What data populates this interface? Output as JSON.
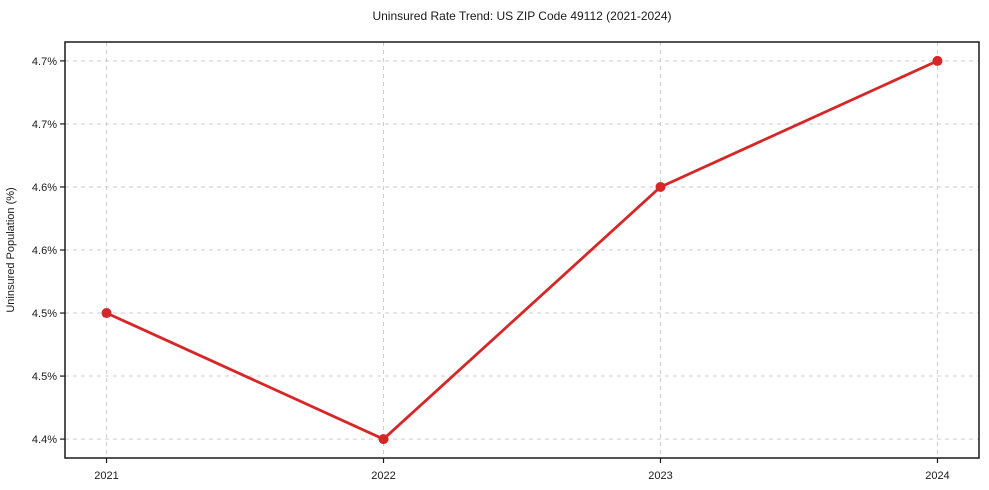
{
  "figure": {
    "background": "#ffffff"
  },
  "chart_data": {
    "type": "line",
    "title": "Uninsured Rate Trend: US ZIP Code 49112 (2021-2024)",
    "xlabel": "",
    "ylabel": "Uninsured Population (%)",
    "x": [
      "2021",
      "2022",
      "2023",
      "2024"
    ],
    "series": [
      {
        "name": "Uninsured Population (%)",
        "values": [
          4.5,
          4.4,
          4.6,
          4.7
        ],
        "color": "#d62728",
        "marker": "circle",
        "line_style": "solid"
      }
    ],
    "ylim": [
      4.385,
      4.715
    ],
    "yticks": [
      4.4,
      4.45,
      4.5,
      4.55,
      4.6,
      4.65,
      4.7
    ],
    "ytick_labels": [
      "4.4%",
      "4.5%",
      "4.5%",
      "4.6%",
      "4.6%",
      "4.7%",
      "4.7%"
    ],
    "xtick_labels": [
      "2021",
      "2022",
      "2023",
      "2024"
    ],
    "grid": true,
    "grid_line_style": "dashed",
    "legend_position": "none",
    "colors": {
      "line": "#d62728",
      "grid": "#cccccc",
      "spine": "#1a1a1a",
      "text": "#1a1a1a",
      "background": "#ffffff"
    }
  }
}
